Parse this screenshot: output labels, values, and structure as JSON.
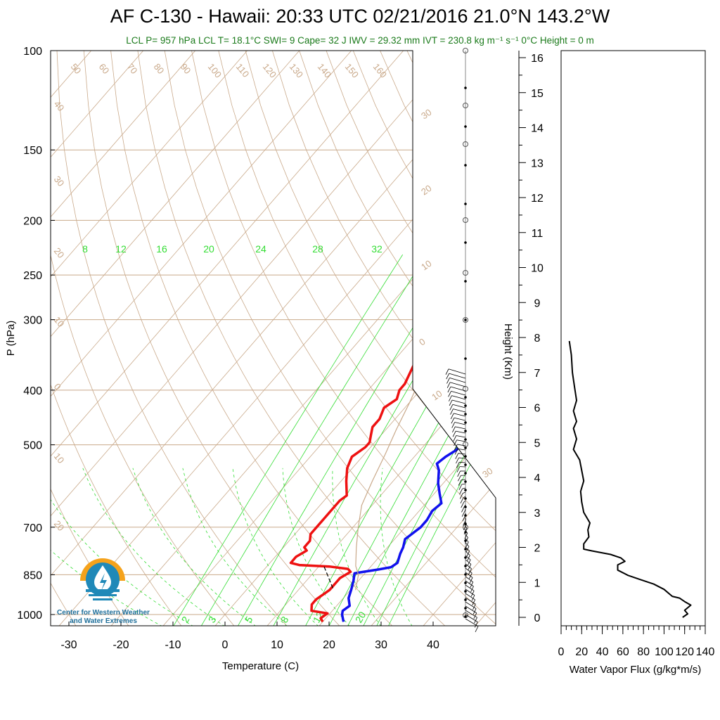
{
  "title": "AF C-130 - Hawaii: 20:33 UTC 02/21/2016  21.0°N 143.2°W",
  "subtitle": "LCL P= 957 hPa  LCL T= 18.1°C  SWI= 9  Cape= 32 J  IWV = 29.32 mm  IVT = 230.8 kg m⁻¹ s⁻¹  0°C Height = 0 m",
  "logo": {
    "text_line1": "Center for Western Weather",
    "text_line2": "and Water Extremes",
    "icon": "water-drop-sun-icon"
  },
  "colors": {
    "temperature": "#ee1111",
    "dewpoint": "#1111ee",
    "isotherm": "#c9a98a",
    "mixing_ratio": "#33dd33",
    "ivt_flux": "#000000",
    "subtitle": "#1a7a1a"
  },
  "chart_data": [
    {
      "type": "line",
      "subtype": "skew-T log-P",
      "xlabel": "Temperature (C)",
      "ylabel": "P (hPa)",
      "x_ticks": [
        -30,
        -20,
        -10,
        0,
        10,
        20,
        30,
        40
      ],
      "y_ticks": [
        100,
        150,
        200,
        250,
        300,
        400,
        500,
        700,
        850,
        1000
      ],
      "xlim": [
        -34,
        52
      ],
      "ylim": [
        1050,
        100
      ],
      "isotherm_labels": [
        "50",
        "60",
        "70",
        "80",
        "90",
        "100",
        "110",
        "120",
        "130",
        "140",
        "150",
        "160",
        "40",
        "30",
        "20",
        "10",
        "0",
        "10",
        "20"
      ],
      "adiabat_labels": [
        "30",
        "20",
        "10",
        "0",
        "10",
        "30"
      ],
      "mixing_ratio_labels_top": [
        "8",
        "12",
        "16",
        "20",
        "24",
        "28",
        "32"
      ],
      "mixing_ratio_labels_bottom": [
        "2",
        "3",
        "5",
        "8",
        "12",
        "20"
      ],
      "series": [
        {
          "points": [
            [
              20,
              1030
            ],
            [
              19,
              1015
            ],
            [
              19.5,
              995
            ],
            [
              16,
              985
            ],
            [
              15,
              960
            ],
            [
              15,
              940
            ],
            [
              16,
              905
            ],
            [
              16,
              880
            ],
            [
              16,
              862
            ],
            [
              17,
              840
            ],
            [
              16,
              830
            ],
            [
              12,
              822
            ],
            [
              6,
              817
            ],
            [
              4,
              810
            ],
            [
              4,
              790
            ],
            [
              5,
              770
            ],
            [
              4,
              760
            ],
            [
              4,
              740
            ],
            [
              3,
              720
            ],
            [
              3,
              690
            ],
            [
              3,
              670
            ],
            [
              3,
              650
            ],
            [
              3,
              628
            ],
            [
              3.5,
              615
            ],
            [
              1,
              580
            ],
            [
              -1,
              550
            ],
            [
              -2,
              525
            ],
            [
              -1,
              505
            ],
            [
              -1,
              495
            ],
            [
              -2,
              480
            ],
            [
              -3,
              465
            ],
            [
              -3,
              450
            ],
            [
              -4,
              430
            ],
            [
              -3,
              415
            ],
            [
              -4,
              400
            ],
            [
              -4,
              390
            ],
            [
              -5,
              370
            ],
            [
              -5.5,
              360
            ]
          ]
        },
        {
          "points": [
            [
              24,
              1030
            ],
            [
              22.5,
              1000
            ],
            [
              22,
              985
            ],
            [
              22.5,
              965
            ],
            [
              21,
              935
            ],
            [
              20,
              900
            ],
            [
              19,
              870
            ],
            [
              18,
              845
            ],
            [
              22,
              832
            ],
            [
              24,
              824
            ],
            [
              24.5,
              810
            ],
            [
              23.5,
              780
            ],
            [
              23,
              760
            ],
            [
              22,
              735
            ],
            [
              23,
              700
            ],
            [
              23,
              680
            ],
            [
              22.5,
              655
            ],
            [
              23,
              635
            ],
            [
              21,
              610
            ],
            [
              19,
              585
            ],
            [
              17,
              555
            ],
            [
              15.5,
              540
            ],
            [
              16,
              525
            ],
            [
              17,
              510
            ],
            [
              16.5,
              495
            ],
            [
              16,
              485
            ],
            [
              15.5,
              470
            ],
            [
              14.5,
              450
            ],
            [
              14.5,
              430
            ],
            [
              15.5,
              400
            ],
            [
              15,
              385
            ],
            [
              14,
              370
            ],
            [
              13.5,
              360
            ]
          ]
        },
        {
          "points": [
            [
              21,
              905
            ],
            [
              19,
              850
            ],
            [
              17,
              820
            ],
            [
              14,
              760
            ],
            [
              11,
              700
            ],
            [
              8,
              640
            ],
            [
              6,
              580
            ],
            [
              4,
              520
            ],
            [
              2,
              470
            ],
            [
              0,
              420
            ],
            [
              -2,
              380
            ],
            [
              -4,
              340
            ],
            [
              -6,
              300
            ],
            [
              -7,
              270
            ],
            [
              -7,
              245
            ],
            [
              -2,
              210
            ],
            [
              5,
              180
            ],
            [
              12,
              150
            ],
            [
              18,
              125
            ],
            [
              25,
              110
            ],
            [
              30,
              100
            ]
          ]
        }
      ],
      "wind_barbs_present": true
    },
    {
      "type": "line",
      "xlabel": "Water Vapor Flux (g/kg*m/s)",
      "ylabel": "Height (Km)",
      "x_ticks": [
        0,
        20,
        40,
        60,
        80,
        100,
        120,
        140
      ],
      "y_ticks": [
        0,
        1,
        2,
        3,
        4,
        5,
        6,
        7,
        8,
        9,
        10,
        11,
        12,
        13,
        14,
        15,
        16
      ],
      "xlim": [
        0,
        140
      ],
      "ylim": [
        -0.2,
        16.3
      ],
      "points": [
        [
          118,
          0
        ],
        [
          123,
          0.1
        ],
        [
          120,
          0.2
        ],
        [
          126,
          0.35
        ],
        [
          120,
          0.45
        ],
        [
          115,
          0.55
        ],
        [
          108,
          0.6
        ],
        [
          100,
          0.8
        ],
        [
          90,
          0.95
        ],
        [
          75,
          1.1
        ],
        [
          65,
          1.2
        ],
        [
          55,
          1.35
        ],
        [
          55,
          1.5
        ],
        [
          62,
          1.6
        ],
        [
          58,
          1.7
        ],
        [
          48,
          1.8
        ],
        [
          30,
          1.9
        ],
        [
          22,
          1.95
        ],
        [
          22,
          2.1
        ],
        [
          27,
          2.3
        ],
        [
          26,
          2.5
        ],
        [
          28,
          2.7
        ],
        [
          22,
          3
        ],
        [
          20,
          3.3
        ],
        [
          19,
          3.6
        ],
        [
          22,
          3.9
        ],
        [
          20,
          4.2
        ],
        [
          18,
          4.5
        ],
        [
          12,
          4.8
        ],
        [
          15,
          5.1
        ],
        [
          12,
          5.4
        ],
        [
          15,
          5.6
        ],
        [
          12,
          5.9
        ],
        [
          15,
          6.2
        ],
        [
          13,
          6.6
        ],
        [
          11,
          7
        ],
        [
          10,
          7.5
        ],
        [
          8,
          7.9
        ]
      ]
    }
  ]
}
